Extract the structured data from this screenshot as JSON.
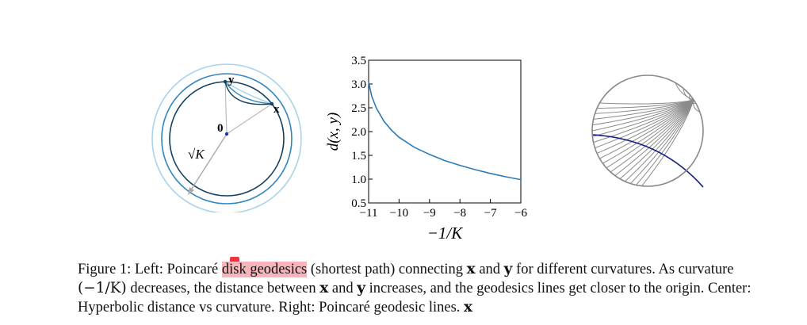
{
  "left_panel": {
    "label_y": "y",
    "label_x": "x",
    "label_origin": "0",
    "label_radius": "√K"
  },
  "center_panel": {
    "chart_data": {
      "type": "line",
      "xlabel": "−1/K",
      "ylabel": "d(x, y)",
      "xlim": [
        -11,
        -6
      ],
      "ylim": [
        0.5,
        3.5
      ],
      "xticks": [
        "−11",
        "−10",
        "−9",
        "−8",
        "−7",
        "−6"
      ],
      "yticks": [
        "0.5",
        "1.0",
        "1.5",
        "2.0",
        "2.5",
        "3.0",
        "3.5"
      ],
      "grid": false,
      "series": [
        {
          "color": "#2b7bb9",
          "x": [
            -11.0,
            -10.9,
            -10.75,
            -10.5,
            -10.25,
            -10.0,
            -9.5,
            -9.0,
            -8.5,
            -8.0,
            -7.5,
            -7.0,
            -6.5,
            -6.0
          ],
          "y": [
            3.05,
            2.75,
            2.5,
            2.22,
            2.03,
            1.88,
            1.67,
            1.52,
            1.39,
            1.29,
            1.2,
            1.12,
            1.05,
            0.99
          ]
        }
      ]
    }
  },
  "caption": {
    "line1_pre": "Figure 1: Left: Poincaré",
    "line1_highlight": "disk geodesics",
    "line1_mid1": " (shortest path) connecting ",
    "line1_x": "x",
    "line1_mid2": " and ",
    "line1_y": "y",
    "line1_post": " for different curvatures. As curvature",
    "line2_math": "(−1/K)",
    "line2_mid1": " decreases, the distance between ",
    "line2_x": "x",
    "line2_mid2": " and ",
    "line2_y": "y",
    "line2_post": " increases, and the geodesics lines get closer to the origin. Center:",
    "line3_pre": "Hyperbolic distance vs curvature. Right: Poincaré geodesic lines. ",
    "line3_x": "x"
  }
}
